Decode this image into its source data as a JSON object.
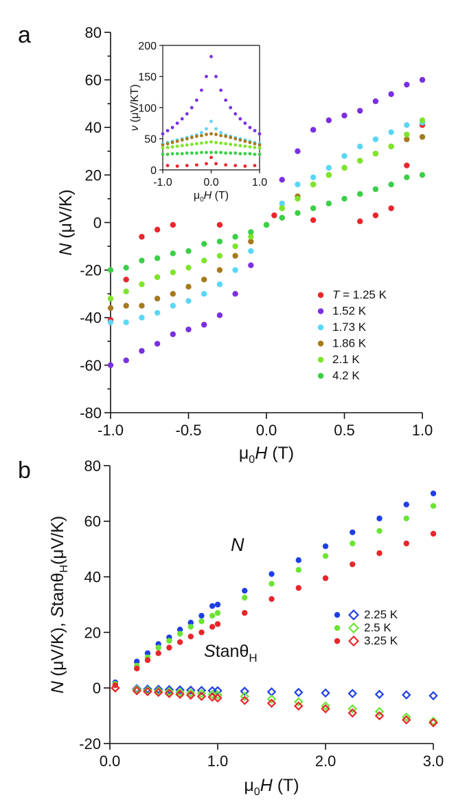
{
  "figure": {
    "panel_a_label": "a",
    "panel_b_label": "b"
  },
  "chart_data": [
    {
      "id": "a-main",
      "type": "scatter",
      "title": "",
      "xlabel": "μ0H (T)",
      "ylabel": "N (μV/K)",
      "xlim": [
        -1.0,
        1.0
      ],
      "ylim": [
        -80,
        80
      ],
      "xticks": [
        -1.0,
        -0.5,
        0.0,
        0.5,
        1.0
      ],
      "xtick_labels": [
        "-1.0",
        "-0.5",
        "0.0",
        "0.5",
        "1.0"
      ],
      "yticks": [
        -80,
        -60,
        -40,
        -20,
        0,
        20,
        40,
        60,
        80
      ],
      "ytick_labels": [
        "-80",
        "-60",
        "-40",
        "-20",
        "0",
        "20",
        "40",
        "60",
        "80"
      ],
      "legend_position": "bottom-right",
      "series": [
        {
          "name": "T = 1.25 K",
          "color": "#e8262b",
          "marker": "dot",
          "x": [
            -1.0,
            -0.9,
            -0.8,
            -0.7,
            -0.6,
            -0.3,
            0.05,
            0.1,
            0.3,
            0.6,
            0.7,
            0.8,
            0.9,
            1.0
          ],
          "y": [
            -41,
            -24,
            -6,
            -3,
            -1,
            -1,
            3,
            2,
            1,
            0.5,
            3,
            6,
            24,
            41
          ]
        },
        {
          "name": "1.52 K",
          "color": "#7a2fe0",
          "marker": "dot",
          "x": [
            -1.0,
            -0.9,
            -0.8,
            -0.7,
            -0.6,
            -0.5,
            -0.4,
            -0.3,
            -0.2,
            -0.1,
            0.1,
            0.2,
            0.3,
            0.4,
            0.5,
            0.6,
            0.7,
            0.8,
            0.9,
            1.0
          ],
          "y": [
            -60,
            -58,
            -54,
            -51,
            -47,
            -45,
            -43,
            -39,
            -30,
            -18,
            18,
            30,
            39,
            43,
            45,
            47,
            51,
            54,
            58,
            60
          ]
        },
        {
          "name": "1.73 K",
          "color": "#5ad7f5",
          "marker": "dot",
          "x": [
            -1.0,
            -0.9,
            -0.8,
            -0.7,
            -0.6,
            -0.5,
            -0.4,
            -0.3,
            -0.2,
            -0.1,
            0.0,
            0.1,
            0.2,
            0.3,
            0.4,
            0.5,
            0.6,
            0.7,
            0.8,
            0.9,
            1.0
          ],
          "y": [
            -42,
            -42,
            -40,
            -38,
            -35,
            -33,
            -30,
            -26,
            -20,
            -12,
            -1,
            8,
            16,
            19,
            23,
            28,
            32,
            35,
            38,
            41,
            42
          ]
        },
        {
          "name": "1.86 K",
          "color": "#a67a1e",
          "marker": "dot",
          "x": [
            -1.0,
            -0.9,
            -0.8,
            -0.7,
            -0.6,
            -0.5,
            -0.4,
            -0.3,
            -0.2,
            -0.1,
            0.0,
            0.1,
            0.2,
            0.3,
            0.4,
            0.5,
            0.6,
            0.7,
            0.8,
            0.9,
            1.0
          ],
          "y": [
            -36,
            -35,
            -35,
            -32,
            -30,
            -27,
            -24,
            -20,
            -14,
            -8,
            -1,
            6,
            11,
            16,
            20,
            23,
            26,
            29,
            32,
            35,
            36
          ]
        },
        {
          "name": "2.1 K",
          "color": "#7de52a",
          "marker": "dot",
          "x": [
            -1.0,
            -0.9,
            -0.8,
            -0.7,
            -0.6,
            -0.5,
            -0.4,
            -0.3,
            -0.2,
            -0.1,
            0.0,
            0.1,
            0.2,
            0.3,
            0.4,
            0.5,
            0.6,
            0.7,
            0.8,
            0.9,
            1.0
          ],
          "y": [
            -32,
            -29,
            -26,
            -23,
            -21,
            -19,
            -16,
            -14,
            -10,
            -6,
            -1,
            6,
            10,
            16,
            20,
            23,
            26,
            29,
            32,
            37,
            43
          ]
        },
        {
          "name": "4.2 K",
          "color": "#3bcf48",
          "marker": "dot",
          "x": [
            -1.0,
            -0.9,
            -0.8,
            -0.7,
            -0.6,
            -0.5,
            -0.4,
            -0.3,
            -0.2,
            -0.1,
            0.0,
            0.1,
            0.2,
            0.3,
            0.4,
            0.5,
            0.6,
            0.7,
            0.8,
            0.9,
            1.0
          ],
          "y": [
            -20,
            -19,
            -16,
            -15,
            -13,
            -12,
            -9,
            -8,
            -6,
            -4,
            -1,
            2,
            4,
            6,
            8,
            10,
            12,
            14,
            16,
            19,
            20
          ]
        }
      ]
    },
    {
      "id": "a-inset",
      "type": "scatter",
      "title": "",
      "xlabel": "μ0H (T)",
      "ylabel": "ν (μV/KT)",
      "xlim": [
        -1.0,
        1.0
      ],
      "ylim": [
        0,
        200
      ],
      "xticks": [
        -1.0,
        0.0,
        1.0
      ],
      "xtick_labels": [
        "-1.0",
        "0.0",
        "1.0"
      ],
      "yticks": [
        0,
        50,
        100,
        150,
        200
      ],
      "ytick_labels": [
        "0",
        "50",
        "100",
        "150",
        "200"
      ],
      "series": [
        {
          "name": "T = 1.25 K",
          "color": "#e8262b",
          "marker": "dot",
          "x": [
            -0.9,
            -0.7,
            -0.5,
            -0.3,
            -0.1,
            0.0,
            0.1,
            0.3,
            0.5,
            0.7,
            0.9
          ],
          "y": [
            7,
            6,
            7,
            8,
            10,
            20,
            10,
            8,
            7,
            6,
            7
          ]
        },
        {
          "name": "1.52 K",
          "color": "#7a2fe0",
          "marker": "dot",
          "x": [
            -1.0,
            -0.9,
            -0.8,
            -0.7,
            -0.6,
            -0.5,
            -0.4,
            -0.3,
            -0.2,
            -0.1,
            0.0,
            0.1,
            0.2,
            0.3,
            0.4,
            0.5,
            0.6,
            0.7,
            0.8,
            0.9,
            1.0
          ],
          "y": [
            58,
            63,
            68,
            75,
            82,
            90,
            100,
            112,
            128,
            150,
            182,
            150,
            128,
            112,
            100,
            90,
            82,
            75,
            68,
            63,
            58
          ]
        },
        {
          "name": "1.73 K",
          "color": "#5ad7f5",
          "marker": "dot",
          "x": [
            -1.0,
            -0.9,
            -0.8,
            -0.7,
            -0.6,
            -0.5,
            -0.4,
            -0.3,
            -0.2,
            -0.1,
            0.0,
            0.1,
            0.2,
            0.3,
            0.4,
            0.5,
            0.6,
            0.7,
            0.8,
            0.9,
            1.0
          ],
          "y": [
            42,
            44,
            46,
            48,
            50,
            52,
            54,
            56,
            60,
            66,
            78,
            66,
            60,
            56,
            54,
            52,
            50,
            48,
            46,
            44,
            42
          ]
        },
        {
          "name": "1.86 K",
          "color": "#a67a1e",
          "marker": "dot",
          "x": [
            -1.0,
            -0.9,
            -0.8,
            -0.7,
            -0.6,
            -0.5,
            -0.4,
            -0.3,
            -0.2,
            -0.1,
            0.0,
            0.1,
            0.2,
            0.3,
            0.4,
            0.5,
            0.6,
            0.7,
            0.8,
            0.9,
            1.0
          ],
          "y": [
            40,
            42,
            44,
            46,
            48,
            50,
            52,
            54,
            55,
            57,
            58,
            57,
            55,
            54,
            52,
            50,
            48,
            46,
            44,
            42,
            40
          ]
        },
        {
          "name": "2.1 K",
          "color": "#7de52a",
          "marker": "dot",
          "x": [
            -1.0,
            -0.9,
            -0.8,
            -0.7,
            -0.6,
            -0.5,
            -0.4,
            -0.3,
            -0.2,
            -0.1,
            0.0,
            0.1,
            0.2,
            0.3,
            0.4,
            0.5,
            0.6,
            0.7,
            0.8,
            0.9,
            1.0
          ],
          "y": [
            35,
            36,
            37,
            38,
            39,
            40,
            41,
            42,
            43,
            44,
            45,
            44,
            43,
            42,
            41,
            40,
            39,
            38,
            37,
            36,
            35
          ]
        },
        {
          "name": "4.2 K",
          "color": "#3bcf48",
          "marker": "dot",
          "x": [
            -1.0,
            -0.9,
            -0.8,
            -0.7,
            -0.6,
            -0.5,
            -0.4,
            -0.3,
            -0.2,
            -0.1,
            0.0,
            0.1,
            0.2,
            0.3,
            0.4,
            0.5,
            0.6,
            0.7,
            0.8,
            0.9,
            1.0
          ],
          "y": [
            25,
            25,
            26,
            26,
            26,
            27,
            27,
            27,
            28,
            28,
            28,
            28,
            28,
            27,
            27,
            27,
            26,
            26,
            26,
            25,
            25
          ]
        }
      ]
    },
    {
      "id": "b-main",
      "type": "scatter",
      "title": "",
      "xlabel": "μ0H (T)",
      "ylabel": "N (μV/K), Stanθ_H(μV/K)",
      "xlim": [
        0.0,
        3.0
      ],
      "ylim": [
        -20,
        80
      ],
      "xticks": [
        0.0,
        1.0,
        2.0,
        3.0
      ],
      "xtick_labels": [
        "0.0",
        "1.0",
        "2.0",
        "3.0"
      ],
      "yticks": [
        -20,
        0,
        20,
        40,
        60,
        80
      ],
      "ytick_labels": [
        "-20",
        "0",
        "20",
        "40",
        "60",
        "80"
      ],
      "legend_position": "center-right",
      "annotations": [
        "N",
        "Stanθ_H"
      ],
      "series": [
        {
          "name": "2.25 K",
          "color": "#1f3fe6",
          "marker": "dot",
          "x": [
            0.05,
            0.25,
            0.35,
            0.45,
            0.55,
            0.65,
            0.75,
            0.85,
            0.95,
            1.0,
            1.25,
            1.5,
            1.75,
            2.0,
            2.25,
            2.5,
            2.75,
            3.0
          ],
          "y": [
            2,
            9.5,
            12.5,
            15.8,
            18.2,
            21,
            23.5,
            26,
            29.5,
            30,
            35,
            41,
            46,
            51,
            56,
            61,
            66,
            70
          ]
        },
        {
          "name": "2.5 K",
          "color": "#6be432",
          "marker": "dot",
          "x": [
            0.05,
            0.25,
            0.35,
            0.45,
            0.55,
            0.65,
            0.75,
            0.85,
            0.95,
            1.0,
            1.25,
            1.5,
            1.75,
            2.0,
            2.25,
            2.5,
            2.75,
            3.0
          ],
          "y": [
            1.5,
            8,
            11,
            14.5,
            17,
            19.5,
            22,
            24,
            26,
            27,
            32.5,
            37.5,
            42.5,
            47.5,
            52,
            56.5,
            61,
            65.5
          ]
        },
        {
          "name": "3.25 K",
          "color": "#e8262b",
          "marker": "dot",
          "x": [
            0.05,
            0.25,
            0.35,
            0.45,
            0.55,
            0.65,
            0.75,
            0.85,
            0.95,
            1.0,
            1.25,
            1.5,
            1.75,
            2.0,
            2.25,
            2.5,
            2.75,
            3.0
          ],
          "y": [
            1,
            7,
            10,
            12.5,
            14.5,
            16.5,
            18.5,
            20,
            22,
            23,
            27,
            32,
            36,
            39.5,
            44.5,
            48.5,
            52,
            55.5
          ]
        },
        {
          "name": "2.25 K",
          "color": "#1f3fe6",
          "marker": "diamond",
          "x": [
            0.05,
            0.25,
            0.35,
            0.45,
            0.55,
            0.65,
            0.75,
            0.85,
            0.95,
            1.0,
            1.25,
            1.5,
            1.75,
            2.0,
            2.25,
            2.5,
            2.75,
            3.0
          ],
          "y": [
            0,
            -0.3,
            -0.4,
            -0.5,
            -0.6,
            -0.7,
            -0.8,
            -0.9,
            -1.0,
            -1.0,
            -1.2,
            -1.4,
            -1.6,
            -1.8,
            -2.0,
            -2.3,
            -2.5,
            -2.8
          ]
        },
        {
          "name": "2.5 K",
          "color": "#6be432",
          "marker": "diamond",
          "x": [
            0.05,
            0.25,
            0.35,
            0.45,
            0.55,
            0.65,
            0.75,
            0.85,
            0.95,
            1.0,
            1.25,
            1.5,
            1.75,
            2.0,
            2.25,
            2.5,
            2.75,
            3.0
          ],
          "y": [
            0,
            -0.6,
            -0.9,
            -1.1,
            -1.3,
            -1.6,
            -1.8,
            -2.0,
            -2.3,
            -2.5,
            -3.0,
            -4.0,
            -5.0,
            -6.5,
            -7.5,
            -8.5,
            -10.5,
            -12
          ]
        },
        {
          "name": "3.25 K",
          "color": "#e8262b",
          "marker": "diamond",
          "x": [
            0.05,
            0.25,
            0.35,
            0.45,
            0.55,
            0.65,
            0.75,
            0.85,
            0.95,
            1.0,
            1.25,
            1.5,
            1.75,
            2.0,
            2.25,
            2.5,
            2.75,
            3.0
          ],
          "y": [
            0,
            -1.0,
            -1.3,
            -1.6,
            -2.0,
            -2.3,
            -2.6,
            -3.0,
            -3.3,
            -3.6,
            -4.5,
            -5.5,
            -6.5,
            -7.5,
            -9.0,
            -10.0,
            -11.5,
            -12.5
          ]
        }
      ]
    }
  ]
}
